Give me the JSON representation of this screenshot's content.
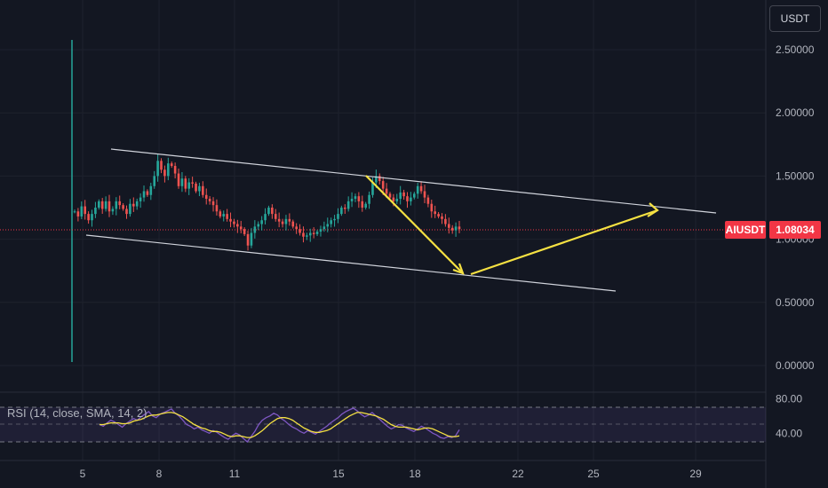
{
  "header": {
    "currency_label": "USDT"
  },
  "price_tag": {
    "symbol": "AIUSDT",
    "value": "1.08034",
    "color": "#f23645"
  },
  "rsi_panel": {
    "label": "RSI (14, close, SMA, 14, 2)",
    "rsi_color": "#7e57c2",
    "ma_color": "#f5e142",
    "band_color": "#7e57c2"
  },
  "chart_data": {
    "type": "candlestick",
    "symbol": "AIUSDT",
    "currency": "USDT",
    "last_price": 1.08034,
    "y_ticks": [
      "2.50000",
      "2.00000",
      "1.50000",
      "1.00000",
      "0.50000",
      "0.00000"
    ],
    "y_tick_values": [
      2.5,
      2.0,
      1.5,
      1.0,
      0.5,
      0.0
    ],
    "x_ticks": [
      "5",
      "8",
      "11",
      "15",
      "18",
      "22",
      "25",
      "29"
    ],
    "price_close": [
      1.22,
      1.18,
      1.26,
      1.2,
      1.15,
      1.2,
      1.25,
      1.3,
      1.24,
      1.3,
      1.22,
      1.24,
      1.3,
      1.27,
      1.24,
      1.2,
      1.28,
      1.26,
      1.3,
      1.33,
      1.38,
      1.35,
      1.42,
      1.5,
      1.62,
      1.55,
      1.5,
      1.6,
      1.58,
      1.52,
      1.42,
      1.48,
      1.4,
      1.45,
      1.44,
      1.38,
      1.42,
      1.35,
      1.32,
      1.3,
      1.27,
      1.22,
      1.18,
      1.2,
      1.16,
      1.14,
      1.12,
      1.1,
      1.08,
      1.04,
      0.95,
      1.05,
      1.1,
      1.12,
      1.15,
      1.2,
      1.25,
      1.2,
      1.16,
      1.14,
      1.12,
      1.16,
      1.14,
      1.1,
      1.08,
      1.05,
      1.02,
      1.03,
      1.05,
      1.04,
      1.06,
      1.08,
      1.1,
      1.12,
      1.15,
      1.16,
      1.2,
      1.25,
      1.24,
      1.3,
      1.32,
      1.34,
      1.3,
      1.25,
      1.28,
      1.35,
      1.45,
      1.5,
      1.46,
      1.4,
      1.36,
      1.33,
      1.3,
      1.32,
      1.37,
      1.34,
      1.3,
      1.33,
      1.36,
      1.42,
      1.38,
      1.33,
      1.28,
      1.22,
      1.2,
      1.18,
      1.16,
      1.12,
      1.09,
      1.07,
      1.1,
      1.08
    ],
    "rsi_values": [
      50,
      48,
      52,
      55,
      53,
      50,
      47,
      51,
      54,
      57,
      55,
      59,
      62,
      65,
      60,
      58,
      62,
      64,
      66,
      68,
      63,
      60,
      55,
      50,
      48,
      45,
      47,
      44,
      42,
      40,
      43,
      41,
      38,
      35,
      33,
      37,
      40,
      38,
      34,
      30,
      36,
      42,
      50,
      55,
      58,
      60,
      63,
      61,
      57,
      54,
      50,
      47,
      45,
      42,
      40,
      43,
      41,
      39,
      42,
      45,
      48,
      52,
      55,
      58,
      62,
      65,
      67,
      69,
      66,
      62,
      59,
      61,
      64,
      60,
      56,
      52,
      48,
      45,
      47,
      50,
      49,
      46,
      44,
      42,
      45,
      48,
      46,
      43,
      40,
      38,
      35,
      34,
      36,
      35,
      37,
      44
    ],
    "rsi_ma_values": [
      50,
      50,
      51,
      52,
      52,
      52,
      51,
      51,
      52,
      54,
      55,
      56,
      58,
      60,
      61,
      61,
      62,
      63,
      64,
      64,
      63,
      61,
      59,
      56,
      53,
      50,
      48,
      46,
      45,
      43,
      42,
      42,
      41,
      39,
      37,
      36,
      37,
      37,
      36,
      35,
      35,
      37,
      40,
      43,
      47,
      51,
      54,
      57,
      58,
      58,
      57,
      55,
      52,
      49,
      46,
      44,
      42,
      41,
      41,
      42,
      43,
      45,
      48,
      51,
      54,
      57,
      60,
      62,
      64,
      64,
      63,
      62,
      61,
      60,
      58,
      56,
      53,
      50,
      48,
      47,
      47,
      47,
      46,
      45,
      44,
      45,
      46,
      46,
      45,
      43,
      41,
      39,
      37,
      36,
      36,
      37
    ],
    "rsi_band": [
      30,
      70
    ],
    "rsi_axis_ticks": [
      "80.00",
      "40.00"
    ],
    "rsi_axis_values": [
      80,
      40
    ],
    "grid": true
  }
}
